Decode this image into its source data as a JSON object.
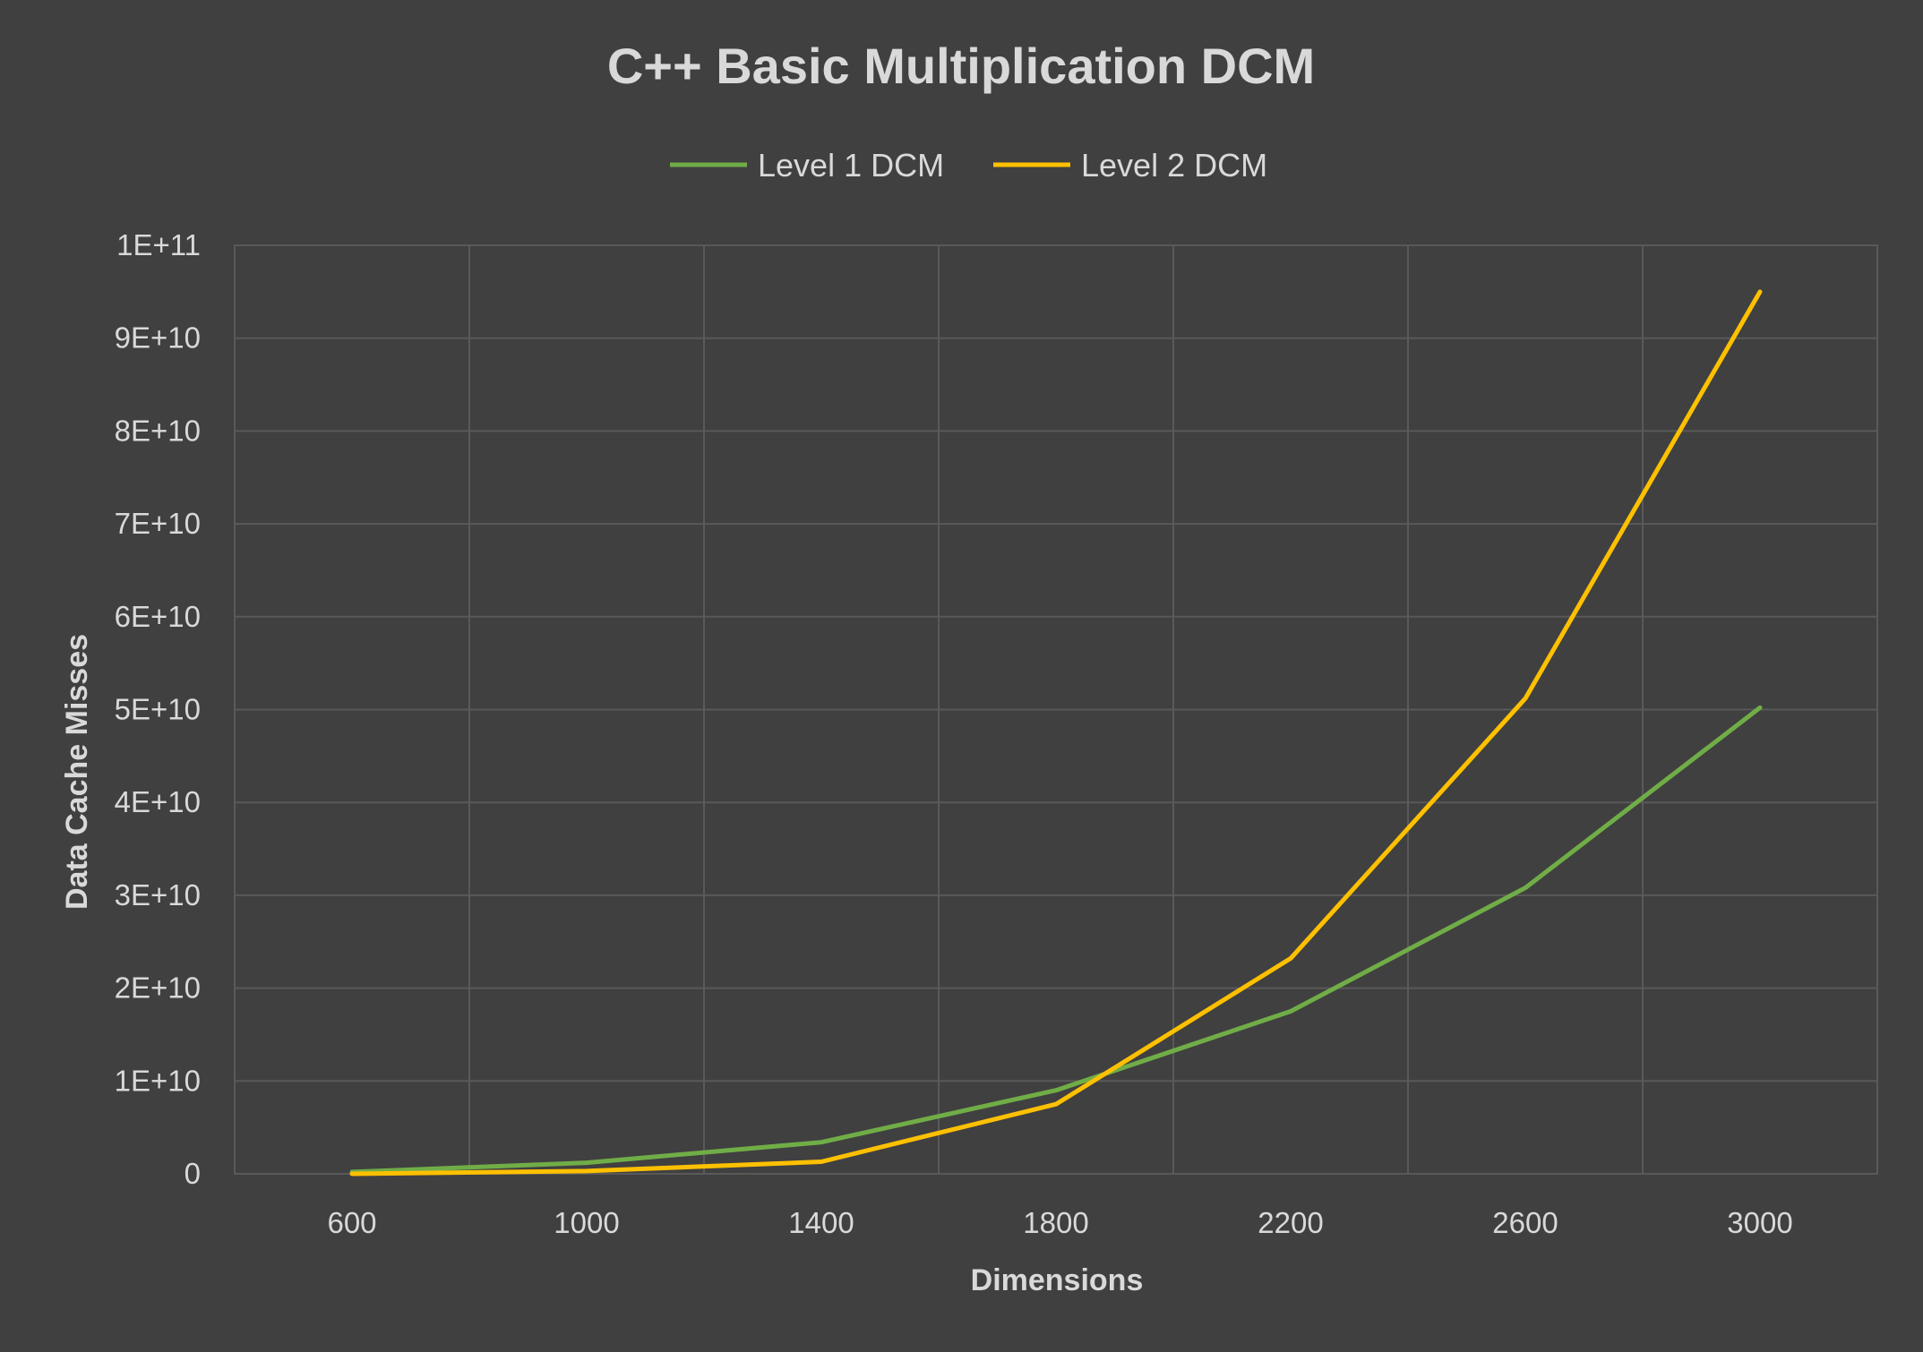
{
  "chart_data": {
    "type": "line",
    "title": "C++ Basic Multiplication DCM",
    "xlabel": "Dimensions",
    "ylabel": "Data Cache Misses",
    "categories": [
      "600",
      "1000",
      "1400",
      "1800",
      "2200",
      "2600",
      "3000"
    ],
    "y_tick_labels": [
      "0",
      "1E+10",
      "2E+10",
      "3E+10",
      "4E+10",
      "5E+10",
      "6E+10",
      "7E+10",
      "8E+10",
      "9E+10",
      "1E+11"
    ],
    "ylim": [
      0,
      100000000000
    ],
    "grid": true,
    "legend_position": "top",
    "series": [
      {
        "name": "Level 1 DCM",
        "color": "#70ad47",
        "values": [
          200000000,
          1200000000,
          3400000000,
          9000000000,
          17500000000,
          30800000000,
          50200000000
        ]
      },
      {
        "name": "Level 2 DCM",
        "color": "#ffc000",
        "values": [
          0,
          300000000,
          1300000000,
          7500000000,
          23200000000,
          51200000000,
          95000000000
        ]
      }
    ]
  }
}
